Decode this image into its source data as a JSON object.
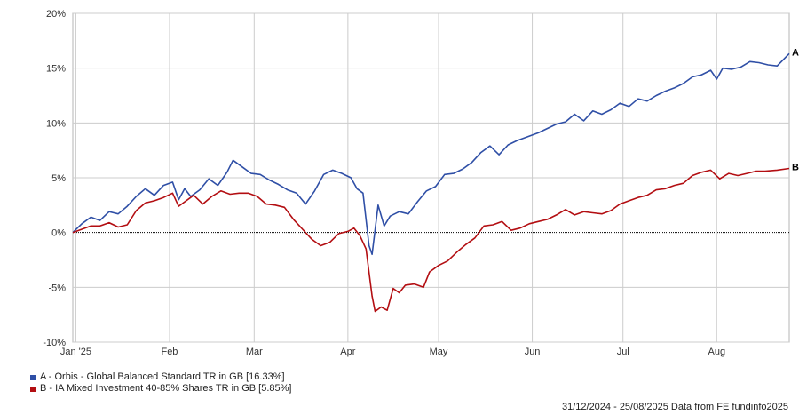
{
  "chart_data": {
    "type": "line",
    "ylim": [
      -10,
      20
    ],
    "y_tick_labels": [
      "20%",
      "15%",
      "10%",
      "5%",
      "0%",
      "-5%",
      "-10%"
    ],
    "y_tick_values": [
      20,
      15,
      10,
      5,
      0,
      -5,
      -10
    ],
    "x_range": [
      "2024-12-31",
      "2025-08-25"
    ],
    "x_tick_labels": [
      "Jan '25",
      "Feb",
      "Mar",
      "Apr",
      "May",
      "Jun",
      "Jul",
      "Aug"
    ],
    "x_tick_dates": [
      "2025-01-01",
      "2025-02-01",
      "2025-03-01",
      "2025-04-01",
      "2025-05-01",
      "2025-06-01",
      "2025-07-01",
      "2025-08-01"
    ],
    "grid": true,
    "series": [
      {
        "id": "A",
        "color": "#2f4fa6",
        "legend": "A - Orbis - Global Balanced Standard TR in GB [16.33%]",
        "end_label": "A",
        "points": [
          [
            "2024-12-31",
            0.0
          ],
          [
            "2025-01-03",
            0.8
          ],
          [
            "2025-01-06",
            1.4
          ],
          [
            "2025-01-09",
            1.1
          ],
          [
            "2025-01-12",
            1.9
          ],
          [
            "2025-01-15",
            1.7
          ],
          [
            "2025-01-18",
            2.4
          ],
          [
            "2025-01-21",
            3.3
          ],
          [
            "2025-01-24",
            4.0
          ],
          [
            "2025-01-27",
            3.4
          ],
          [
            "2025-01-30",
            4.3
          ],
          [
            "2025-02-02",
            4.6
          ],
          [
            "2025-02-04",
            3.0
          ],
          [
            "2025-02-06",
            4.0
          ],
          [
            "2025-02-08",
            3.3
          ],
          [
            "2025-02-11",
            3.9
          ],
          [
            "2025-02-14",
            4.9
          ],
          [
            "2025-02-17",
            4.3
          ],
          [
            "2025-02-20",
            5.5
          ],
          [
            "2025-02-22",
            6.6
          ],
          [
            "2025-02-25",
            6.0
          ],
          [
            "2025-02-28",
            5.4
          ],
          [
            "2025-03-03",
            5.3
          ],
          [
            "2025-03-06",
            4.8
          ],
          [
            "2025-03-09",
            4.4
          ],
          [
            "2025-03-12",
            3.9
          ],
          [
            "2025-03-15",
            3.6
          ],
          [
            "2025-03-18",
            2.6
          ],
          [
            "2025-03-21",
            3.8
          ],
          [
            "2025-03-24",
            5.3
          ],
          [
            "2025-03-27",
            5.7
          ],
          [
            "2025-03-30",
            5.4
          ],
          [
            "2025-04-02",
            5.0
          ],
          [
            "2025-04-04",
            4.0
          ],
          [
            "2025-04-06",
            3.6
          ],
          [
            "2025-04-08",
            -1.2
          ],
          [
            "2025-04-09",
            -2.0
          ],
          [
            "2025-04-11",
            2.5
          ],
          [
            "2025-04-13",
            0.6
          ],
          [
            "2025-04-15",
            1.5
          ],
          [
            "2025-04-18",
            1.9
          ],
          [
            "2025-04-21",
            1.7
          ],
          [
            "2025-04-24",
            2.8
          ],
          [
            "2025-04-27",
            3.8
          ],
          [
            "2025-04-30",
            4.2
          ],
          [
            "2025-05-03",
            5.3
          ],
          [
            "2025-05-06",
            5.4
          ],
          [
            "2025-05-09",
            5.8
          ],
          [
            "2025-05-12",
            6.4
          ],
          [
            "2025-05-15",
            7.3
          ],
          [
            "2025-05-18",
            7.9
          ],
          [
            "2025-05-21",
            7.1
          ],
          [
            "2025-05-24",
            8.0
          ],
          [
            "2025-05-27",
            8.4
          ],
          [
            "2025-05-30",
            8.7
          ],
          [
            "2025-06-03",
            9.1
          ],
          [
            "2025-06-06",
            9.5
          ],
          [
            "2025-06-09",
            9.9
          ],
          [
            "2025-06-12",
            10.1
          ],
          [
            "2025-06-15",
            10.8
          ],
          [
            "2025-06-18",
            10.2
          ],
          [
            "2025-06-21",
            11.1
          ],
          [
            "2025-06-24",
            10.8
          ],
          [
            "2025-06-27",
            11.2
          ],
          [
            "2025-06-30",
            11.8
          ],
          [
            "2025-07-03",
            11.5
          ],
          [
            "2025-07-06",
            12.2
          ],
          [
            "2025-07-09",
            12.0
          ],
          [
            "2025-07-12",
            12.5
          ],
          [
            "2025-07-15",
            12.9
          ],
          [
            "2025-07-18",
            13.2
          ],
          [
            "2025-07-21",
            13.6
          ],
          [
            "2025-07-24",
            14.2
          ],
          [
            "2025-07-27",
            14.4
          ],
          [
            "2025-07-30",
            14.8
          ],
          [
            "2025-08-01",
            14.0
          ],
          [
            "2025-08-03",
            15.0
          ],
          [
            "2025-08-06",
            14.9
          ],
          [
            "2025-08-09",
            15.1
          ],
          [
            "2025-08-12",
            15.6
          ],
          [
            "2025-08-15",
            15.5
          ],
          [
            "2025-08-18",
            15.3
          ],
          [
            "2025-08-21",
            15.2
          ],
          [
            "2025-08-25",
            16.33
          ]
        ]
      },
      {
        "id": "B",
        "color": "#b30e12",
        "legend": "B - IA Mixed Investment 40-85% Shares TR in GB [5.85%]",
        "end_label": "B",
        "points": [
          [
            "2024-12-31",
            0.0
          ],
          [
            "2025-01-03",
            0.3
          ],
          [
            "2025-01-06",
            0.6
          ],
          [
            "2025-01-09",
            0.6
          ],
          [
            "2025-01-12",
            0.9
          ],
          [
            "2025-01-15",
            0.5
          ],
          [
            "2025-01-18",
            0.7
          ],
          [
            "2025-01-21",
            2.0
          ],
          [
            "2025-01-24",
            2.7
          ],
          [
            "2025-01-27",
            2.9
          ],
          [
            "2025-01-30",
            3.2
          ],
          [
            "2025-02-02",
            3.6
          ],
          [
            "2025-02-04",
            2.4
          ],
          [
            "2025-02-06",
            2.8
          ],
          [
            "2025-02-09",
            3.4
          ],
          [
            "2025-02-12",
            2.6
          ],
          [
            "2025-02-15",
            3.3
          ],
          [
            "2025-02-18",
            3.8
          ],
          [
            "2025-02-21",
            3.5
          ],
          [
            "2025-02-24",
            3.6
          ],
          [
            "2025-02-27",
            3.6
          ],
          [
            "2025-03-02",
            3.3
          ],
          [
            "2025-03-05",
            2.6
          ],
          [
            "2025-03-08",
            2.5
          ],
          [
            "2025-03-11",
            2.3
          ],
          [
            "2025-03-14",
            1.2
          ],
          [
            "2025-03-17",
            0.3
          ],
          [
            "2025-03-20",
            -0.6
          ],
          [
            "2025-03-23",
            -1.2
          ],
          [
            "2025-03-26",
            -0.9
          ],
          [
            "2025-03-29",
            -0.1
          ],
          [
            "2025-04-01",
            0.1
          ],
          [
            "2025-04-03",
            0.4
          ],
          [
            "2025-04-05",
            -0.3
          ],
          [
            "2025-04-07",
            -1.5
          ],
          [
            "2025-04-09",
            -5.8
          ],
          [
            "2025-04-10",
            -7.2
          ],
          [
            "2025-04-12",
            -6.8
          ],
          [
            "2025-04-14",
            -7.1
          ],
          [
            "2025-04-16",
            -5.1
          ],
          [
            "2025-04-18",
            -5.5
          ],
          [
            "2025-04-20",
            -4.8
          ],
          [
            "2025-04-23",
            -4.7
          ],
          [
            "2025-04-26",
            -5.0
          ],
          [
            "2025-04-28",
            -3.6
          ],
          [
            "2025-05-01",
            -3.0
          ],
          [
            "2025-05-04",
            -2.6
          ],
          [
            "2025-05-07",
            -1.8
          ],
          [
            "2025-05-10",
            -1.1
          ],
          [
            "2025-05-13",
            -0.5
          ],
          [
            "2025-05-16",
            0.6
          ],
          [
            "2025-05-19",
            0.7
          ],
          [
            "2025-05-22",
            1.0
          ],
          [
            "2025-05-25",
            0.2
          ],
          [
            "2025-05-28",
            0.4
          ],
          [
            "2025-05-31",
            0.8
          ],
          [
            "2025-06-03",
            1.0
          ],
          [
            "2025-06-06",
            1.2
          ],
          [
            "2025-06-09",
            1.6
          ],
          [
            "2025-06-12",
            2.1
          ],
          [
            "2025-06-15",
            1.6
          ],
          [
            "2025-06-18",
            1.9
          ],
          [
            "2025-06-21",
            1.8
          ],
          [
            "2025-06-24",
            1.7
          ],
          [
            "2025-06-27",
            2.0
          ],
          [
            "2025-06-30",
            2.6
          ],
          [
            "2025-07-03",
            2.9
          ],
          [
            "2025-07-06",
            3.2
          ],
          [
            "2025-07-09",
            3.4
          ],
          [
            "2025-07-12",
            3.9
          ],
          [
            "2025-07-15",
            4.0
          ],
          [
            "2025-07-18",
            4.3
          ],
          [
            "2025-07-21",
            4.5
          ],
          [
            "2025-07-24",
            5.2
          ],
          [
            "2025-07-27",
            5.5
          ],
          [
            "2025-07-30",
            5.7
          ],
          [
            "2025-08-02",
            4.9
          ],
          [
            "2025-08-05",
            5.4
          ],
          [
            "2025-08-08",
            5.2
          ],
          [
            "2025-08-11",
            5.4
          ],
          [
            "2025-08-14",
            5.6
          ],
          [
            "2025-08-17",
            5.6
          ],
          [
            "2025-08-21",
            5.7
          ],
          [
            "2025-08-25",
            5.85
          ]
        ]
      }
    ]
  },
  "source_text": "31/12/2024 - 25/08/2025 Data from FE fundinfo2025"
}
